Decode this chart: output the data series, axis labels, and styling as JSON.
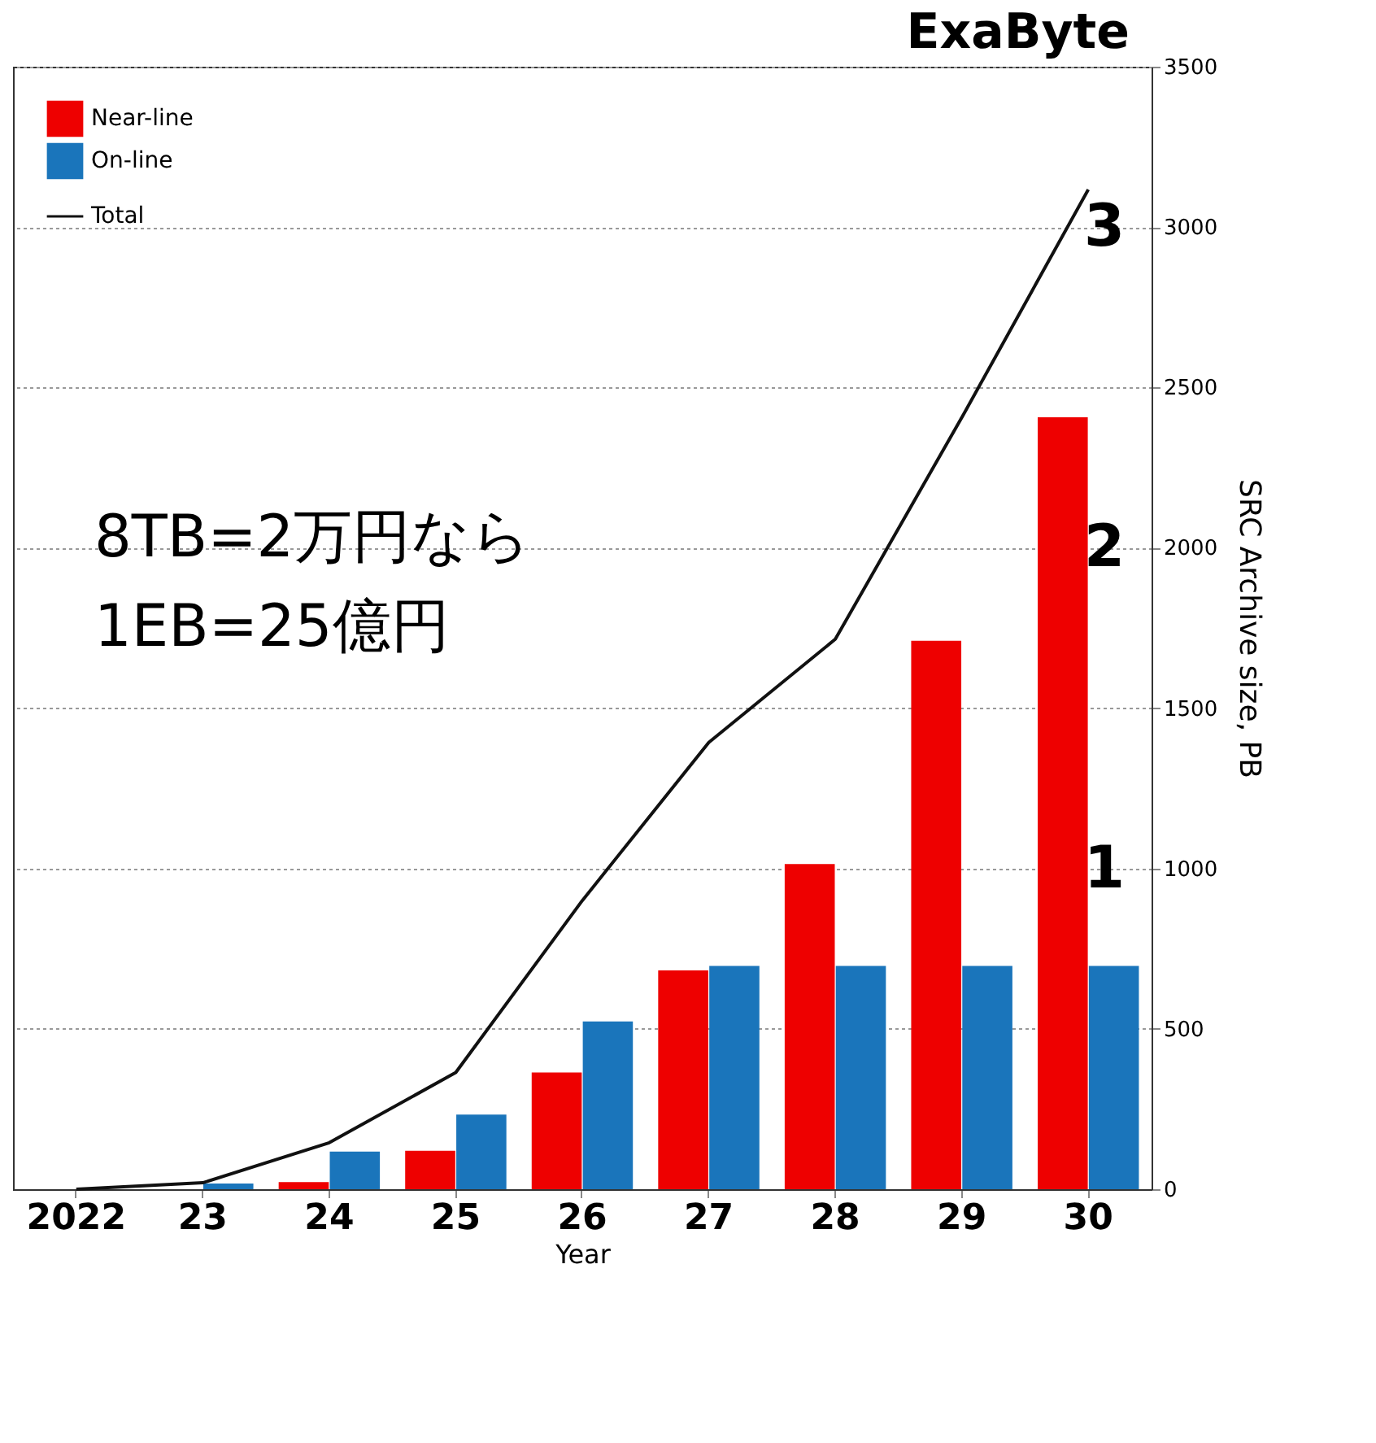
{
  "chart_data": {
    "type": "bar",
    "xlabel": "Year",
    "ylabel": "SRC Archive size, PB",
    "y2label": "ExaByte",
    "categories": [
      "2022",
      "23",
      "24",
      "25",
      "26",
      "27",
      "28",
      "29",
      "30"
    ],
    "series": [
      {
        "name": "Near-line",
        "color": "#ee0000",
        "values": [
          null,
          null,
          22,
          120,
          364,
          682,
          1014,
          1710,
          2407
        ]
      },
      {
        "name": "On-line",
        "color": "#1a75bb",
        "values": [
          null,
          18,
          117,
          233,
          523,
          696,
          696,
          696,
          696
        ]
      },
      {
        "name": "Total",
        "type": "line",
        "color": "#111111",
        "values": [
          0,
          20,
          145,
          364,
          900,
          1393,
          1715,
          2406,
          3117
        ]
      }
    ],
    "ylim": [
      0,
      3500
    ],
    "yticks": [
      0,
      500,
      1000,
      1500,
      2000,
      2500,
      3000,
      3500
    ],
    "y2lim": [
      0,
      3.5
    ],
    "y2ticks": [
      1,
      2,
      3
    ],
    "grid": "y",
    "legend": "top left",
    "annotations": [
      "8TB=2万円なら",
      "1EB=25億円"
    ]
  }
}
